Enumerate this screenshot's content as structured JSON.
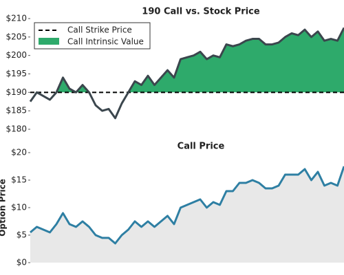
{
  "chart_data": [
    {
      "type": "line",
      "title": "190 Call vs. Stock Price",
      "categories": [
        null,
        null,
        null,
        null,
        null,
        null,
        null,
        null,
        null,
        null,
        null,
        null,
        null,
        null,
        null,
        null,
        null,
        null,
        null,
        null,
        null,
        null,
        null,
        null,
        null,
        null,
        null,
        null,
        null,
        null,
        null,
        null,
        null,
        null,
        null,
        null,
        null,
        null,
        null,
        null,
        null,
        null,
        null,
        null,
        null,
        null,
        null,
        null,
        null
      ],
      "series": [
        {
          "color": "#3b464d",
          "values": [
            187.5,
            190,
            189,
            188,
            190,
            194,
            191,
            190,
            192,
            190,
            186.5,
            185,
            185.5,
            183,
            187,
            190,
            193,
            192,
            194.5,
            192,
            194,
            196,
            194,
            199,
            199.5,
            200,
            201,
            199,
            200,
            199.5,
            203,
            202.5,
            203,
            204,
            204.5,
            204.5,
            203,
            203,
            203.5,
            205,
            206,
            205.5,
            207,
            205,
            206.5,
            204,
            204.5,
            204,
            207.5
          ]
        }
      ],
      "strike": {
        "name": "Call Strike Price",
        "value": 190,
        "color": "#000000"
      },
      "fill": {
        "name": "Call Intrinsic Value",
        "color": "#2eaa6b"
      },
      "legend": "upper left",
      "ylim": [
        180,
        210
      ],
      "yticks": [
        {
          "value": 180,
          "label": "$180"
        },
        {
          "value": 185,
          "label": "$185"
        },
        {
          "value": 190,
          "label": "$190"
        },
        {
          "value": 195,
          "label": "$195"
        },
        {
          "value": 200,
          "label": "$200"
        },
        {
          "value": 205,
          "label": "$205"
        },
        {
          "value": 210,
          "label": "$210"
        }
      ]
    },
    {
      "type": "area",
      "title": "Call Price",
      "ylabel": "Option Price",
      "categories": [
        null,
        null,
        null,
        null,
        null,
        null,
        null,
        null,
        null,
        null,
        null,
        null,
        null,
        null,
        null,
        null,
        null,
        null,
        null,
        null,
        null,
        null,
        null,
        null,
        null,
        null,
        null,
        null,
        null,
        null,
        null,
        null,
        null,
        null,
        null,
        null,
        null,
        null,
        null,
        null,
        null,
        null,
        null,
        null,
        null,
        null,
        null,
        null,
        null
      ],
      "series": [
        {
          "color": "#2e7fa3",
          "fill": "#e8e8e8",
          "values": [
            5.5,
            6.5,
            6,
            5.5,
            7,
            9,
            7,
            6.5,
            7.5,
            6.5,
            5,
            4.5,
            4.5,
            3.5,
            5,
            6,
            7.5,
            6.5,
            7.5,
            6.5,
            7.5,
            8.5,
            7,
            10,
            10.5,
            11,
            11.5,
            10,
            11,
            10.5,
            13,
            13,
            14.5,
            14.5,
            15,
            14.5,
            13.5,
            13.5,
            14,
            16,
            16,
            16,
            17,
            15,
            16.5,
            14,
            14.5,
            14,
            17.5
          ]
        }
      ],
      "ylim": [
        0,
        20
      ],
      "yticks": [
        {
          "value": 0,
          "label": "$0"
        },
        {
          "value": 5,
          "label": "$5"
        },
        {
          "value": 10,
          "label": "$10"
        },
        {
          "value": 15,
          "label": "$15"
        },
        {
          "value": 20,
          "label": "$20"
        }
      ]
    }
  ]
}
